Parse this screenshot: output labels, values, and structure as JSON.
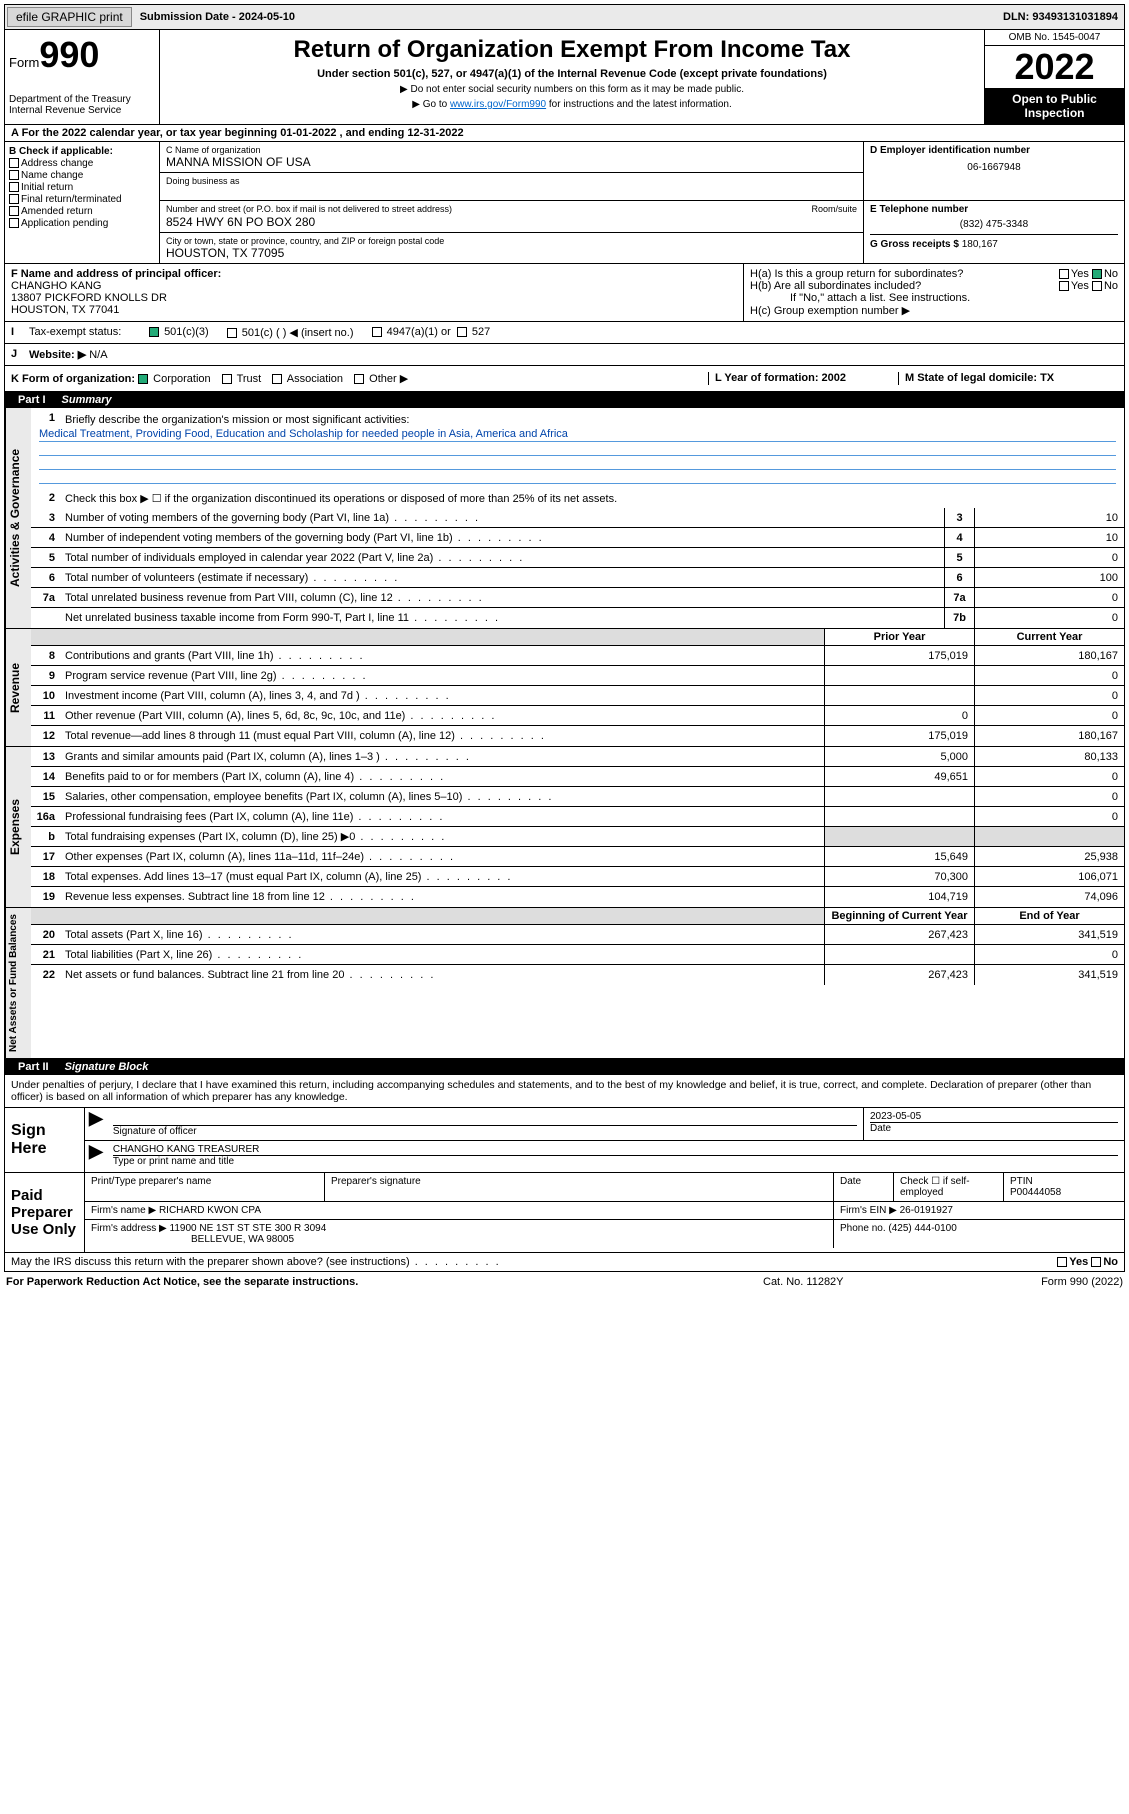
{
  "topbar": {
    "efile": "efile GRAPHIC print",
    "submission_label": "Submission Date - 2024-05-10",
    "dln": "DLN: 93493131031894"
  },
  "header": {
    "form_word": "Form",
    "form_num": "990",
    "dept": "Department of the Treasury\nInternal Revenue Service",
    "title": "Return of Organization Exempt From Income Tax",
    "subtitle": "Under section 501(c), 527, or 4947(a)(1) of the Internal Revenue Code (except private foundations)",
    "note1": "▶ Do not enter social security numbers on this form as it may be made public.",
    "note2_pre": "▶ Go to ",
    "note2_link": "www.irs.gov/Form990",
    "note2_post": " for instructions and the latest information.",
    "omb": "OMB No. 1545-0047",
    "year": "2022",
    "opi": "Open to Public Inspection"
  },
  "line_a": "A For the 2022 calendar year, or tax year beginning 01-01-2022    , and ending 12-31-2022",
  "sec_b": {
    "label": "B Check if applicable:",
    "items": [
      "Address change",
      "Name change",
      "Initial return",
      "Final return/terminated",
      "Amended return",
      "Application pending"
    ]
  },
  "sec_c": {
    "name_lab": "C Name of organization",
    "name_val": "MANNA MISSION OF USA",
    "dba_lab": "Doing business as",
    "addr_lab": "Number and street (or P.O. box if mail is not delivered to street address)",
    "room_lab": "Room/suite",
    "addr_val": "8524 HWY 6N PO BOX 280",
    "city_lab": "City or town, state or province, country, and ZIP or foreign postal code",
    "city_val": "HOUSTON, TX  77095"
  },
  "sec_d": {
    "lab": "D Employer identification number",
    "val": "06-1667948"
  },
  "sec_e": {
    "lab": "E Telephone number",
    "val": "(832) 475-3348"
  },
  "sec_g": {
    "lab": "G Gross receipts $",
    "val": "180,167"
  },
  "sec_f": {
    "lab": "F  Name and address of principal officer:",
    "name": "CHANGHO KANG",
    "addr": "13807 PICKFORD KNOLLS DR\nHOUSTON, TX  77041"
  },
  "sec_h": {
    "ha": "H(a)  Is this a group return for subordinates?",
    "hb": "H(b)  Are all subordinates included?",
    "hb_note": "If \"No,\" attach a list. See instructions.",
    "hc": "H(c)  Group exemption number ▶",
    "yes": "Yes",
    "no": "No"
  },
  "row_i": {
    "lab": "I",
    "txt": "Tax-exempt status:",
    "opts": [
      "501(c)(3)",
      "501(c) (  ) ◀ (insert no.)",
      "4947(a)(1) or",
      "527"
    ]
  },
  "row_j": {
    "lab": "J",
    "txt": "Website: ▶",
    "val": "N/A"
  },
  "row_k": {
    "lab": "K Form of organization:",
    "opts": [
      "Corporation",
      "Trust",
      "Association",
      "Other ▶"
    ],
    "l": "L Year of formation: 2002",
    "m": "M State of legal domicile: TX"
  },
  "part1": {
    "num": "Part I",
    "title": "Summary"
  },
  "summary": {
    "q1": "Briefly describe the organization's mission or most significant activities:",
    "mission": "Medical Treatment, Providing Food, Education and Scholaship for needed people in Asia, America and Africa",
    "q2": "Check this box ▶ ☐  if the organization discontinued its operations or disposed of more than 25% of its net assets.",
    "rows_gov": [
      {
        "n": "3",
        "t": "Number of voting members of the governing body (Part VI, line 1a)",
        "box": "3",
        "v": "10"
      },
      {
        "n": "4",
        "t": "Number of independent voting members of the governing body (Part VI, line 1b)",
        "box": "4",
        "v": "10"
      },
      {
        "n": "5",
        "t": "Total number of individuals employed in calendar year 2022 (Part V, line 2a)",
        "box": "5",
        "v": "0"
      },
      {
        "n": "6",
        "t": "Total number of volunteers (estimate if necessary)",
        "box": "6",
        "v": "100"
      },
      {
        "n": "7a",
        "t": "Total unrelated business revenue from Part VIII, column (C), line 12",
        "box": "7a",
        "v": "0"
      },
      {
        "n": "",
        "t": "Net unrelated business taxable income from Form 990-T, Part I, line 11",
        "box": "7b",
        "v": "0"
      }
    ],
    "col_prior": "Prior Year",
    "col_curr": "Current Year",
    "rows_rev": [
      {
        "n": "8",
        "t": "Contributions and grants (Part VIII, line 1h)",
        "p": "175,019",
        "c": "180,167"
      },
      {
        "n": "9",
        "t": "Program service revenue (Part VIII, line 2g)",
        "p": "",
        "c": "0"
      },
      {
        "n": "10",
        "t": "Investment income (Part VIII, column (A), lines 3, 4, and 7d )",
        "p": "",
        "c": "0"
      },
      {
        "n": "11",
        "t": "Other revenue (Part VIII, column (A), lines 5, 6d, 8c, 9c, 10c, and 11e)",
        "p": "0",
        "c": "0"
      },
      {
        "n": "12",
        "t": "Total revenue—add lines 8 through 11 (must equal Part VIII, column (A), line 12)",
        "p": "175,019",
        "c": "180,167"
      }
    ],
    "rows_exp": [
      {
        "n": "13",
        "t": "Grants and similar amounts paid (Part IX, column (A), lines 1–3 )",
        "p": "5,000",
        "c": "80,133"
      },
      {
        "n": "14",
        "t": "Benefits paid to or for members (Part IX, column (A), line 4)",
        "p": "49,651",
        "c": "0"
      },
      {
        "n": "15",
        "t": "Salaries, other compensation, employee benefits (Part IX, column (A), lines 5–10)",
        "p": "",
        "c": "0"
      },
      {
        "n": "16a",
        "t": "Professional fundraising fees (Part IX, column (A), line 11e)",
        "p": "",
        "c": "0"
      },
      {
        "n": "b",
        "t": "Total fundraising expenses (Part IX, column (D), line 25) ▶0",
        "p": "",
        "c": "",
        "shade": true
      },
      {
        "n": "17",
        "t": "Other expenses (Part IX, column (A), lines 11a–11d, 11f–24e)",
        "p": "15,649",
        "c": "25,938"
      },
      {
        "n": "18",
        "t": "Total expenses. Add lines 13–17 (must equal Part IX, column (A), line 25)",
        "p": "70,300",
        "c": "106,071"
      },
      {
        "n": "19",
        "t": "Revenue less expenses. Subtract line 18 from line 12",
        "p": "104,719",
        "c": "74,096"
      }
    ],
    "col_beg": "Beginning of Current Year",
    "col_end": "End of Year",
    "rows_net": [
      {
        "n": "20",
        "t": "Total assets (Part X, line 16)",
        "p": "267,423",
        "c": "341,519"
      },
      {
        "n": "21",
        "t": "Total liabilities (Part X, line 26)",
        "p": "",
        "c": "0"
      },
      {
        "n": "22",
        "t": "Net assets or fund balances. Subtract line 21 from line 20",
        "p": "267,423",
        "c": "341,519"
      }
    ],
    "vlabels": {
      "gov": "Activities & Governance",
      "rev": "Revenue",
      "exp": "Expenses",
      "net": "Net Assets or Fund Balances"
    }
  },
  "part2": {
    "num": "Part II",
    "title": "Signature Block"
  },
  "sig": {
    "intro": "Under penalties of perjury, I declare that I have examined this return, including accompanying schedules and statements, and to the best of my knowledge and belief, it is true, correct, and complete. Declaration of preparer (other than officer) is based on all information of which preparer has any knowledge.",
    "sign_here": "Sign Here",
    "sig_officer": "Signature of officer",
    "date_lab": "Date",
    "date_val": "2023-05-05",
    "officer_name": "CHANGHO KANG  TREASURER",
    "type_name": "Type or print name and title",
    "paid": "Paid Preparer Use Only",
    "h_print": "Print/Type preparer's name",
    "h_sig": "Preparer's signature",
    "h_date": "Date",
    "h_check": "Check ☐ if self-employed",
    "h_ptin": "PTIN",
    "ptin": "P00444058",
    "firm_name_lab": "Firm's name    ▶",
    "firm_name": "RICHARD KWON CPA",
    "firm_ein_lab": "Firm's EIN ▶",
    "firm_ein": "26-0191927",
    "firm_addr_lab": "Firm's address ▶",
    "firm_addr": "11900 NE 1ST ST STE 300 R 3094",
    "firm_city": "BELLEVUE, WA  98005",
    "phone_lab": "Phone no.",
    "phone": "(425) 444-0100"
  },
  "may_irs": "May the IRS discuss this return with the preparer shown above? (see instructions)",
  "footer": {
    "left": "For Paperwork Reduction Act Notice, see the separate instructions.",
    "mid": "Cat. No. 11282Y",
    "right": "Form 990 (2022)"
  }
}
